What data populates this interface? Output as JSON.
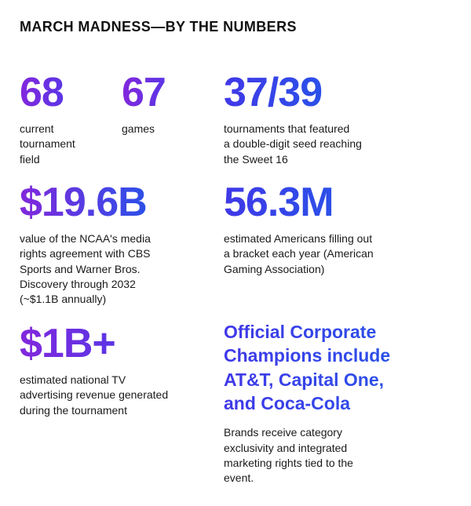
{
  "page": {
    "title": "MARCH MADNESS—BY THE NUMBERS"
  },
  "stats": [
    {
      "value": "68",
      "caption": "current\ntournament\nfield"
    },
    {
      "value": "67",
      "caption": "games"
    },
    {
      "value": "37/39",
      "caption": "tournaments that featured\na double-digit seed reaching\nthe Sweet 16"
    },
    {
      "value": "$19.6B",
      "caption": "value of the NCAA's media\nrights agreement with CBS\nSports and Warner Bros.\nDiscovery through 2032\n(~$1.1B annually)"
    },
    {
      "value": "56.3M",
      "caption": "estimated Americans filling out\na bracket each year (American\nGaming Association)"
    },
    {
      "value": "$1B+",
      "caption": "estimated national TV\nadvertising revenue generated\nduring the tournament"
    }
  ],
  "sponsor": {
    "headline": "Official Corporate\nChampions include\nAT&T, Capital One,\nand Coca-Cola",
    "body": "Brands receive category\nexclusivity and integrated\nmarketing rights tied to the\nevent."
  },
  "colors": {
    "purple": "#8227DC",
    "violet": "#5B35E6",
    "indigo": "#4038E8",
    "blue": "#2B50E8",
    "text": "#1A1A1A",
    "bg": "#FFFFFF"
  }
}
